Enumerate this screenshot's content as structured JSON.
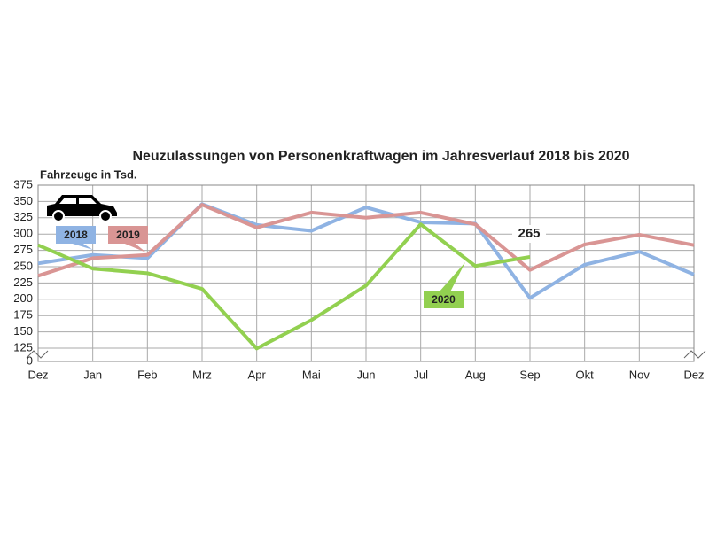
{
  "chart_data": {
    "type": "line",
    "title": "Neuzulassungen von Personenkraftwagen im Jahresverlauf 2018 bis 2020",
    "y_axis_label": "Fahrzeuge in Tsd.",
    "categories": [
      "Dez",
      "Jan",
      "Feb",
      "Mrz",
      "Apr",
      "Mai",
      "Jun",
      "Jul",
      "Aug",
      "Sep",
      "Okt",
      "Nov",
      "Dez"
    ],
    "series": [
      {
        "name": "2018",
        "color": "#8fb3e3",
        "values": [
          255,
          268,
          263,
          346,
          314,
          305,
          341,
          318,
          316,
          202,
          253,
          273,
          238
        ]
      },
      {
        "name": "2019",
        "color": "#d99594",
        "values": [
          236,
          263,
          268,
          345,
          310,
          333,
          325,
          333,
          315,
          245,
          284,
          299,
          283
        ]
      },
      {
        "name": "2020",
        "color": "#92d050",
        "values": [
          283,
          247,
          240,
          216,
          122,
          168,
          221,
          315,
          251,
          265,
          null,
          null,
          null
        ]
      }
    ],
    "annotation": "265",
    "ylim": [
      0,
      375
    ],
    "y_break": [
      0,
      125
    ],
    "yticks": [
      0,
      125,
      150,
      175,
      200,
      225,
      250,
      275,
      300,
      325,
      350,
      375
    ],
    "grid": true
  }
}
